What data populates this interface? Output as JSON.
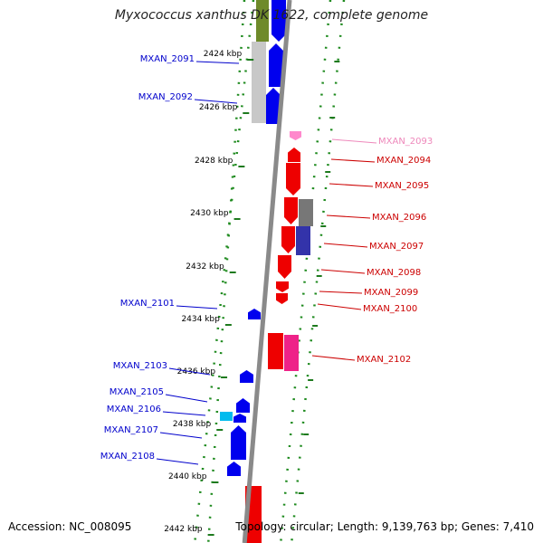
{
  "title": "Myxococcus xanthus DK 1622, complete genome",
  "footer": {
    "accession": "Accession: NC_008095",
    "summary": "Topology: circular; Length: 9,139,763 bp; Genes: 7,410"
  },
  "colors": {
    "background": "#ffffff",
    "backbone": "#8a8a8a",
    "tick": "#1e7a1e",
    "dots": "#1e8a1e",
    "label_blue": "#0000cc",
    "label_red": "#cc0000",
    "label_pink": "#ee88bb"
  },
  "scale": {
    "unit": "kbp",
    "ticks": [
      "2424 kbp",
      "2426 kbp",
      "2428 kbp",
      "2430 kbp",
      "2432 kbp",
      "2434 kbp",
      "2436 kbp",
      "2438 kbp",
      "2440 kbp",
      "2442 kbp"
    ]
  },
  "gene_labels": [
    {
      "id": "MXAN_2091",
      "strand": "reverse"
    },
    {
      "id": "MXAN_2092",
      "strand": "reverse"
    },
    {
      "id": "MXAN_2093",
      "strand": "forward-faded"
    },
    {
      "id": "MXAN_2094",
      "strand": "forward"
    },
    {
      "id": "MXAN_2095",
      "strand": "forward"
    },
    {
      "id": "MXAN_2096",
      "strand": "forward"
    },
    {
      "id": "MXAN_2097",
      "strand": "forward"
    },
    {
      "id": "MXAN_2098",
      "strand": "forward"
    },
    {
      "id": "MXAN_2099",
      "strand": "forward"
    },
    {
      "id": "MXAN_2100",
      "strand": "forward"
    },
    {
      "id": "MXAN_2101",
      "strand": "reverse"
    },
    {
      "id": "MXAN_2102",
      "strand": "forward"
    },
    {
      "id": "MXAN_2103",
      "strand": "reverse"
    },
    {
      "id": "MXAN_2105",
      "strand": "reverse"
    },
    {
      "id": "MXAN_2106",
      "strand": "reverse"
    },
    {
      "id": "MXAN_2107",
      "strand": "reverse"
    },
    {
      "id": "MXAN_2108",
      "strand": "reverse"
    }
  ]
}
